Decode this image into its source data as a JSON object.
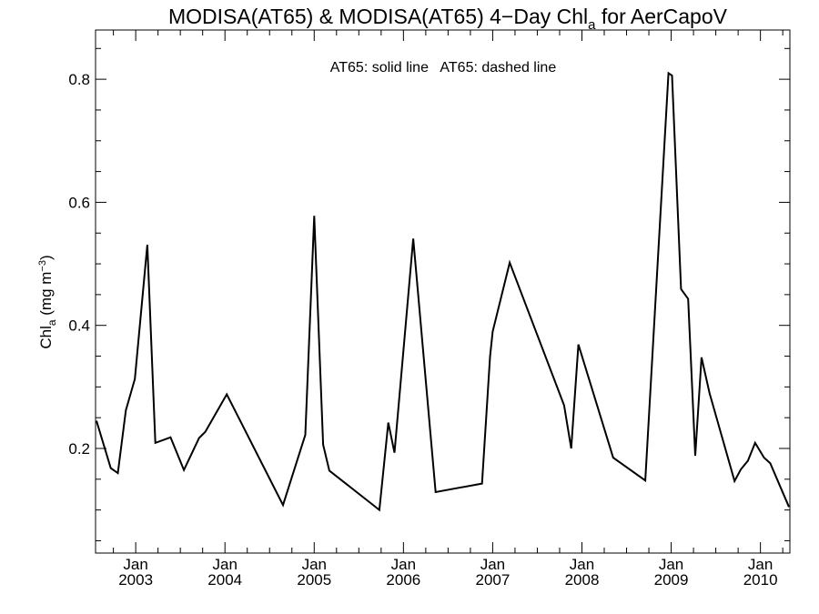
{
  "chart_data": {
    "type": "line",
    "title": "MODISA(AT65) & MODISA(AT65) 4−Day Chl",
    "title_subscript": "a",
    "title_suffix": " for AerCapoV",
    "ylabel": "Chl",
    "ylabel_subscript": "a",
    "ylabel_unit": " (mg m",
    "ylabel_unit_sup": "−3",
    "ylabel_unit_close": ")",
    "annotation": "AT65: solid line   AT65: dashed line",
    "xlim": [
      2002.55,
      2010.33
    ],
    "ylim": [
      0.03,
      0.88
    ],
    "yticks": [
      {
        "value": 0.2,
        "label": "0.2"
      },
      {
        "value": 0.4,
        "label": "0.4"
      },
      {
        "value": 0.6,
        "label": "0.6"
      },
      {
        "value": 0.8,
        "label": "0.8"
      }
    ],
    "xticks": [
      {
        "value": 2003.0,
        "month": "Jan",
        "year": "2003"
      },
      {
        "value": 2004.0,
        "month": "Jan",
        "year": "2004"
      },
      {
        "value": 2005.0,
        "month": "Jan",
        "year": "2005"
      },
      {
        "value": 2006.0,
        "month": "Jan",
        "year": "2006"
      },
      {
        "value": 2007.0,
        "month": "Jan",
        "year": "2007"
      },
      {
        "value": 2008.0,
        "month": "Jan",
        "year": "2008"
      },
      {
        "value": 2009.0,
        "month": "Jan",
        "year": "2009"
      },
      {
        "value": 2010.0,
        "month": "Jan",
        "year": "2010"
      }
    ],
    "series": [
      {
        "style": "solid",
        "x": [
          2002.56,
          2002.72,
          2002.8,
          2002.89,
          2002.99,
          2003.13,
          2003.22,
          2003.39,
          2003.54,
          2003.71,
          2003.78,
          2004.02,
          2004.65,
          2004.9,
          2005.0,
          2005.1,
          2005.17,
          2005.73,
          2005.83,
          2005.9,
          2006.11,
          2006.36,
          2006.88,
          2006.97,
          2007.0,
          2007.19,
          2007.8,
          2007.88,
          2007.96,
          2008.35,
          2008.71,
          2008.97,
          2009.01,
          2009.11,
          2009.19,
          2009.27,
          2009.34,
          2009.43,
          2009.71,
          2009.78,
          2009.86,
          2009.94,
          2010.04,
          2010.11,
          2010.32
        ],
        "y": [
          0.245,
          0.168,
          0.16,
          0.262,
          0.313,
          0.531,
          0.209,
          0.218,
          0.165,
          0.217,
          0.227,
          0.288,
          0.108,
          0.222,
          0.578,
          0.206,
          0.164,
          0.1,
          0.242,
          0.193,
          0.541,
          0.129,
          0.143,
          0.349,
          0.39,
          0.502,
          0.27,
          0.2,
          0.369,
          0.185,
          0.148,
          0.81,
          0.806,
          0.459,
          0.443,
          0.188,
          0.348,
          0.29,
          0.147,
          0.166,
          0.18,
          0.209,
          0.185,
          0.176,
          0.105
        ]
      }
    ]
  }
}
